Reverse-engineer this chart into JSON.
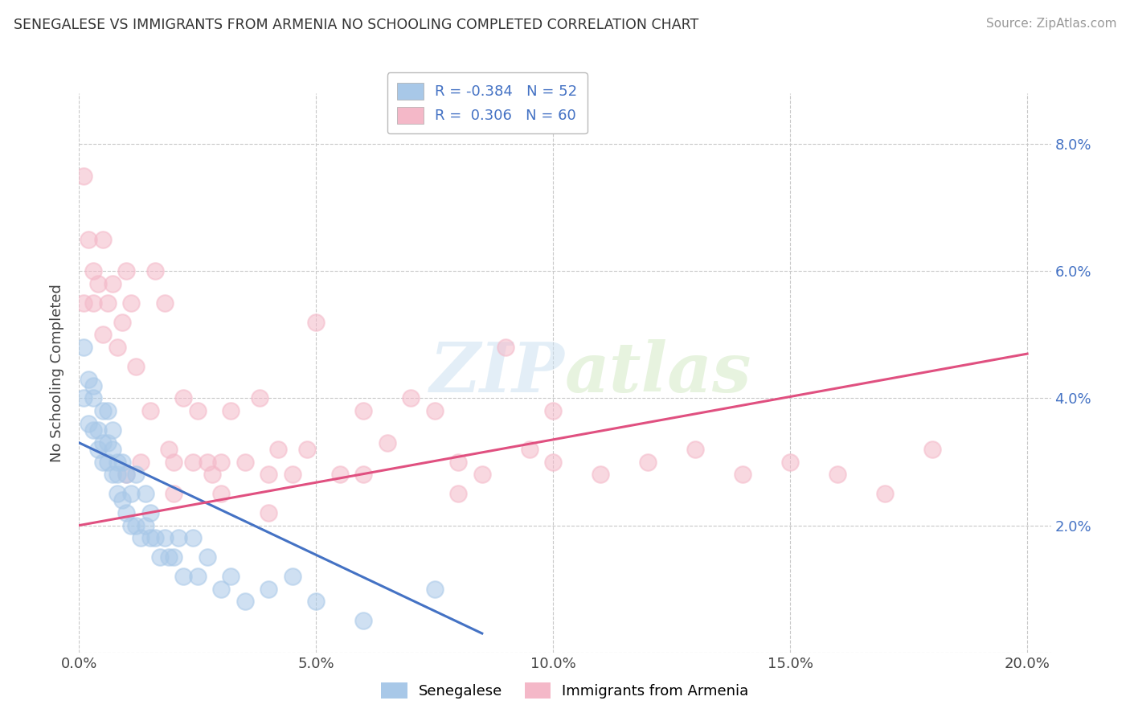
{
  "title": "SENEGALESE VS IMMIGRANTS FROM ARMENIA NO SCHOOLING COMPLETED CORRELATION CHART",
  "source": "Source: ZipAtlas.com",
  "ylabel": "No Schooling Completed",
  "legend_label1": "Senegalese",
  "legend_label2": "Immigrants from Armenia",
  "r1": "-0.384",
  "n1": "52",
  "r2": "0.306",
  "n2": "60",
  "watermark": "ZIPatlas",
  "xlim": [
    0.0,
    0.205
  ],
  "ylim": [
    0.0,
    0.088
  ],
  "xticks": [
    0.0,
    0.05,
    0.1,
    0.15,
    0.2
  ],
  "yticks": [
    0.0,
    0.02,
    0.04,
    0.06,
    0.08
  ],
  "xtick_labels": [
    "0.0%",
    "5.0%",
    "10.0%",
    "15.0%",
    "20.0%"
  ],
  "ytick_labels_right": [
    "",
    "2.0%",
    "4.0%",
    "6.0%",
    "8.0%"
  ],
  "color_blue": "#a8c8e8",
  "color_pink": "#f4b8c8",
  "line_blue": "#4472c4",
  "line_pink": "#e05080",
  "background": "#ffffff",
  "grid_color": "#c8c8c8",
  "blue_x": [
    0.001,
    0.001,
    0.002,
    0.002,
    0.003,
    0.003,
    0.003,
    0.004,
    0.004,
    0.005,
    0.005,
    0.005,
    0.006,
    0.006,
    0.006,
    0.007,
    0.007,
    0.007,
    0.008,
    0.008,
    0.008,
    0.009,
    0.009,
    0.01,
    0.01,
    0.011,
    0.011,
    0.012,
    0.012,
    0.013,
    0.014,
    0.014,
    0.015,
    0.015,
    0.016,
    0.017,
    0.018,
    0.019,
    0.02,
    0.021,
    0.022,
    0.024,
    0.025,
    0.027,
    0.03,
    0.032,
    0.035,
    0.04,
    0.045,
    0.05,
    0.06,
    0.075
  ],
  "blue_y": [
    0.048,
    0.04,
    0.043,
    0.036,
    0.04,
    0.035,
    0.042,
    0.035,
    0.032,
    0.038,
    0.033,
    0.03,
    0.033,
    0.03,
    0.038,
    0.028,
    0.032,
    0.035,
    0.025,
    0.03,
    0.028,
    0.024,
    0.03,
    0.022,
    0.028,
    0.02,
    0.025,
    0.02,
    0.028,
    0.018,
    0.02,
    0.025,
    0.018,
    0.022,
    0.018,
    0.015,
    0.018,
    0.015,
    0.015,
    0.018,
    0.012,
    0.018,
    0.012,
    0.015,
    0.01,
    0.012,
    0.008,
    0.01,
    0.012,
    0.008,
    0.005,
    0.01
  ],
  "pink_x": [
    0.001,
    0.001,
    0.002,
    0.003,
    0.003,
    0.004,
    0.005,
    0.005,
    0.006,
    0.007,
    0.008,
    0.009,
    0.01,
    0.011,
    0.012,
    0.013,
    0.015,
    0.016,
    0.018,
    0.019,
    0.02,
    0.022,
    0.024,
    0.025,
    0.027,
    0.028,
    0.03,
    0.032,
    0.035,
    0.038,
    0.04,
    0.042,
    0.045,
    0.048,
    0.05,
    0.055,
    0.06,
    0.065,
    0.07,
    0.075,
    0.08,
    0.085,
    0.09,
    0.095,
    0.1,
    0.11,
    0.12,
    0.13,
    0.14,
    0.15,
    0.16,
    0.17,
    0.18,
    0.01,
    0.02,
    0.03,
    0.04,
    0.06,
    0.08,
    0.1
  ],
  "pink_y": [
    0.075,
    0.055,
    0.065,
    0.06,
    0.055,
    0.058,
    0.065,
    0.05,
    0.055,
    0.058,
    0.048,
    0.052,
    0.06,
    0.055,
    0.045,
    0.03,
    0.038,
    0.06,
    0.055,
    0.032,
    0.03,
    0.04,
    0.03,
    0.038,
    0.03,
    0.028,
    0.025,
    0.038,
    0.03,
    0.04,
    0.028,
    0.032,
    0.028,
    0.032,
    0.052,
    0.028,
    0.038,
    0.033,
    0.04,
    0.038,
    0.03,
    0.028,
    0.048,
    0.032,
    0.038,
    0.028,
    0.03,
    0.032,
    0.028,
    0.03,
    0.028,
    0.025,
    0.032,
    0.028,
    0.025,
    0.03,
    0.022,
    0.028,
    0.025,
    0.03
  ],
  "blue_trend_x": [
    0.0,
    0.085
  ],
  "blue_trend_y": [
    0.033,
    0.003
  ],
  "pink_trend_x": [
    0.0,
    0.2
  ],
  "pink_trend_y": [
    0.02,
    0.047
  ]
}
